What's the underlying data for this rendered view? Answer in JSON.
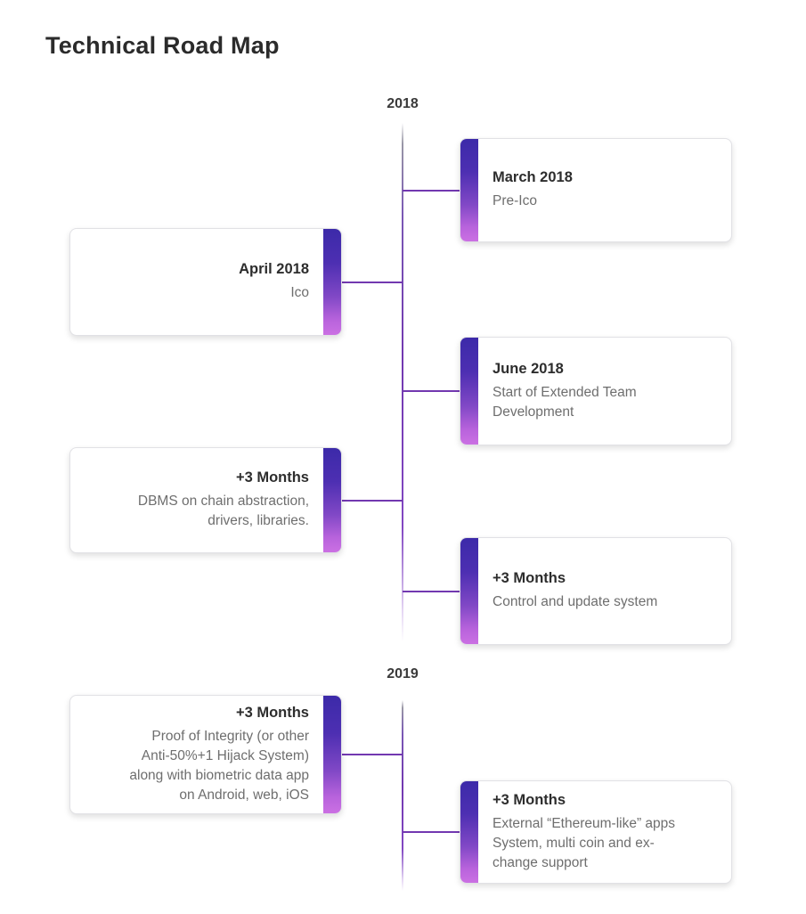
{
  "page": {
    "title": "Technical Road Map"
  },
  "timeline": {
    "sections": [
      {
        "year": "2018",
        "items": [
          {
            "side": "right",
            "title": "March 2018",
            "desc": "Pre-Ico"
          },
          {
            "side": "left",
            "title": "April 2018",
            "desc": "Ico"
          },
          {
            "side": "right",
            "title": "June 2018",
            "desc": "Start of Extended Team\nDevelopment"
          },
          {
            "side": "left",
            "title": "+3 Months",
            "desc": "DBMS on chain abstraction,\ndrivers, libraries."
          },
          {
            "side": "right",
            "title": "+3 Months",
            "desc": "Control and update system"
          }
        ]
      },
      {
        "year": "2019",
        "items": [
          {
            "side": "left",
            "title": "+3 Months",
            "desc": "Proof of Integrity (or other\nAnti-50%+1 Hijack System)\nalong with biometric data app\non Android, web, iOS"
          },
          {
            "side": "right",
            "title": "+3 Months",
            "desc": "External “Ethereum-like” apps\nSystem, multi coin and ex-\nchange support"
          }
        ]
      }
    ]
  },
  "colors": {
    "accent_gradient_top": "#3c2aa9",
    "accent_gradient_bottom": "#cb70e3",
    "line_color": "#7238b0",
    "heading_text": "#2b2b2b",
    "card_title_text": "#2d2d2d",
    "card_description_text": "#6e6e6e"
  }
}
